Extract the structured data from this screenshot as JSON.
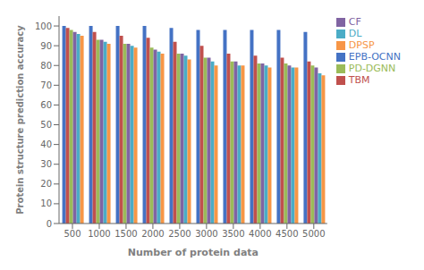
{
  "chart_data": {
    "type": "bar",
    "xlabel": "Number of protein data",
    "ylabel": "Protein structure prediction accuracy",
    "categories": [
      500,
      1000,
      1500,
      2000,
      2500,
      3000,
      3500,
      4000,
      4500,
      5000
    ],
    "series": [
      {
        "name": "EPB-OCNN",
        "color": "#4472C4",
        "values": [
          100,
          100,
          100,
          100,
          99,
          98,
          98,
          98,
          98,
          97
        ]
      },
      {
        "name": "TBM",
        "color": "#C0504D",
        "values": [
          99,
          97,
          95,
          94,
          92,
          90,
          86,
          85,
          84,
          82
        ]
      },
      {
        "name": "PD-DGNN",
        "color": "#9BBB59",
        "values": [
          98,
          93,
          91,
          89,
          86,
          84,
          82,
          81,
          81,
          80
        ]
      },
      {
        "name": "CF",
        "color": "#8064A2",
        "values": [
          97,
          93,
          91,
          88,
          86,
          84,
          82,
          81,
          80,
          79
        ]
      },
      {
        "name": "DL",
        "color": "#4BACC6",
        "values": [
          96,
          92,
          90,
          87,
          85,
          82,
          80,
          80,
          79,
          76
        ]
      },
      {
        "name": "DPSP",
        "color": "#F79646",
        "values": [
          95,
          91,
          89,
          86,
          83,
          80,
          80,
          79,
          79,
          75
        ]
      }
    ],
    "ylim": [
      0,
      105
    ],
    "yticks": [
      0,
      10,
      20,
      30,
      40,
      50,
      60,
      70,
      80,
      90,
      100
    ],
    "grid": false,
    "legend": "right"
  }
}
